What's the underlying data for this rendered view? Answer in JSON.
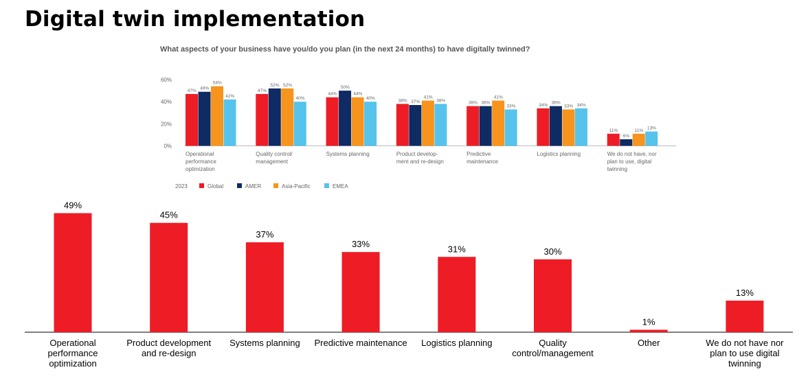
{
  "page": {
    "title": "Digital twin implementation"
  },
  "colors": {
    "red": "#ee1c25",
    "navy": "#0e2b63",
    "orange": "#f7941d",
    "lightblue": "#55c3ec",
    "axis": "#bbbbbb"
  },
  "chart_data": [
    {
      "type": "bar",
      "title": "What aspects of your business have you/do you plan (in the next 24 months) to have digitally twinned?",
      "categories": [
        "Operational performance optimization",
        "Quality control/ management",
        "Systems planning",
        "Product develop- ment and re-design",
        "Predictive maintenance",
        "Logistics planning",
        "We do not have, nor plan to use, digital twinning"
      ],
      "category_lines": [
        [
          "Operational",
          "performance",
          "optimization"
        ],
        [
          "Quality control/",
          "management"
        ],
        [
          "Systems planning"
        ],
        [
          "Product develop-",
          "ment and re-design"
        ],
        [
          "Predictive",
          "maintenance"
        ],
        [
          "Logistics planning"
        ],
        [
          "We do not have, nor",
          "plan to use, digital",
          "twinning"
        ]
      ],
      "series": [
        {
          "name": "Global",
          "color": "#ee1c25",
          "values": [
            47,
            47,
            44,
            38,
            36,
            34,
            11
          ]
        },
        {
          "name": "AMER",
          "color": "#0e2b63",
          "values": [
            49,
            52,
            50,
            37,
            36,
            36,
            6
          ]
        },
        {
          "name": "Asia-Pacific",
          "color": "#f7941d",
          "values": [
            54,
            52,
            44,
            41,
            41,
            33,
            11
          ]
        },
        {
          "name": "EMEA",
          "color": "#55c3ec",
          "values": [
            42,
            40,
            40,
            38,
            33,
            34,
            13
          ]
        }
      ],
      "value_suffix": "%",
      "yticks": [
        "60%",
        "40%",
        "20%",
        "0%"
      ],
      "ytick_values": [
        60,
        40,
        20,
        0
      ],
      "ylim": [
        0,
        60
      ],
      "legend_title": "2023",
      "legend_position": "bottom-left",
      "grid": false
    },
    {
      "type": "bar",
      "categories": [
        "Operational performance optimization",
        "Product development and re-design",
        "Systems planning",
        "Predictive maintenance",
        "Logistics planning",
        "Quality control/management",
        "Other",
        "We do not have nor plan to use digital twinning"
      ],
      "category_lines": [
        [
          "Operational",
          "performance",
          "optimization"
        ],
        [
          "Product development",
          "and re-design"
        ],
        [
          "Systems planning"
        ],
        [
          "Predictive maintenance"
        ],
        [
          "Logistics planning"
        ],
        [
          "Quality",
          "control/management"
        ],
        [
          "Other"
        ],
        [
          "We do not have nor",
          "plan to use digital",
          "twinning"
        ]
      ],
      "values": [
        49,
        45,
        37,
        33,
        31,
        30,
        1,
        13
      ],
      "value_labels": [
        "49%",
        "45%",
        "37%",
        "33%",
        "31%",
        "30%",
        "1%",
        "13%"
      ],
      "color": "#ee1c25",
      "grid": false
    }
  ]
}
